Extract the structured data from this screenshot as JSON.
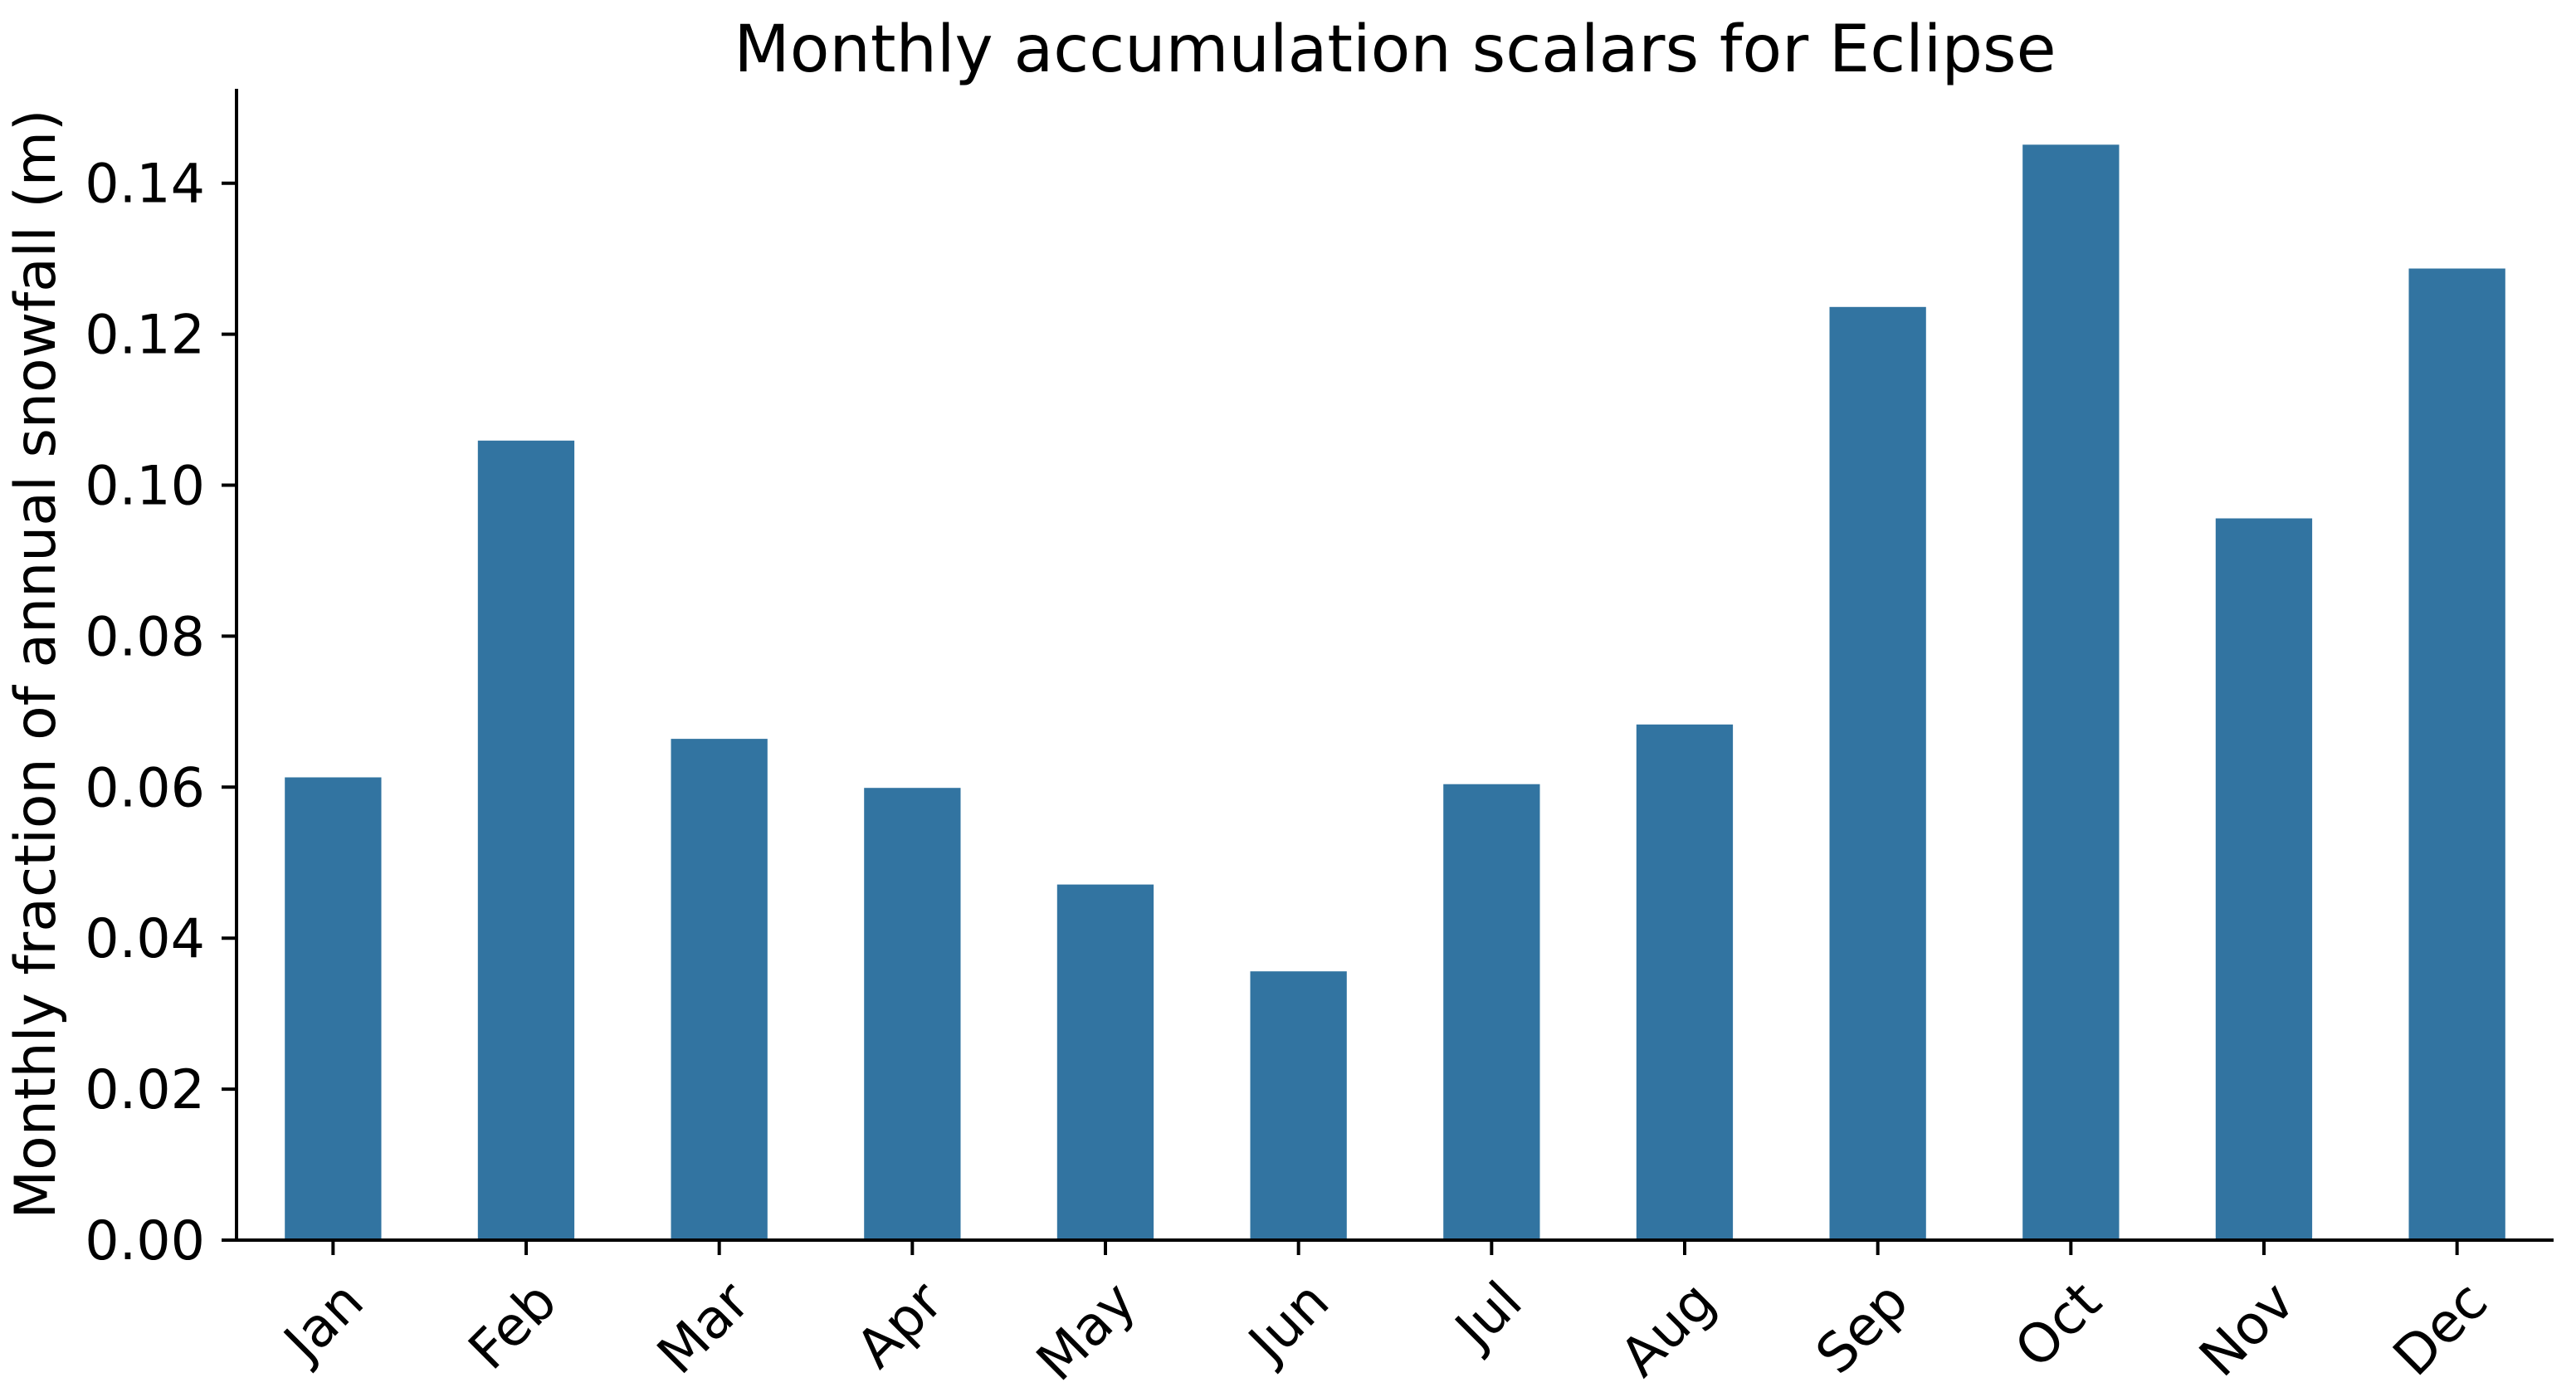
{
  "figure": {
    "background": "#ffffff",
    "text_color": "#000000"
  },
  "chart_data": {
    "type": "bar",
    "title": "Monthly accumulation scalars for Eclipse",
    "xlabel": "",
    "ylabel": "Monthly fraction of annual snowfall (m)",
    "categories": [
      "Jan",
      "Feb",
      "Mar",
      "Apr",
      "May",
      "Jun",
      "Jul",
      "Aug",
      "Sep",
      "Oct",
      "Nov",
      "Dec"
    ],
    "values": [
      0.0613,
      0.1059,
      0.0664,
      0.0599,
      0.0471,
      0.0356,
      0.0604,
      0.0683,
      0.1236,
      0.1451,
      0.0956,
      0.1287
    ],
    "ylim": [
      0,
      0.1525
    ],
    "yticks": [
      0.0,
      0.02,
      0.04,
      0.06,
      0.08,
      0.1,
      0.12,
      0.14
    ],
    "ytick_labels": [
      "0.00",
      "0.02",
      "0.04",
      "0.06",
      "0.08",
      "0.10",
      "0.12",
      "0.14"
    ],
    "xtick_rotation": 45,
    "grid": false,
    "legend": null,
    "bar_color": "#3274a1",
    "axis_color": "#000000",
    "bar_relative_width": 0.5
  }
}
